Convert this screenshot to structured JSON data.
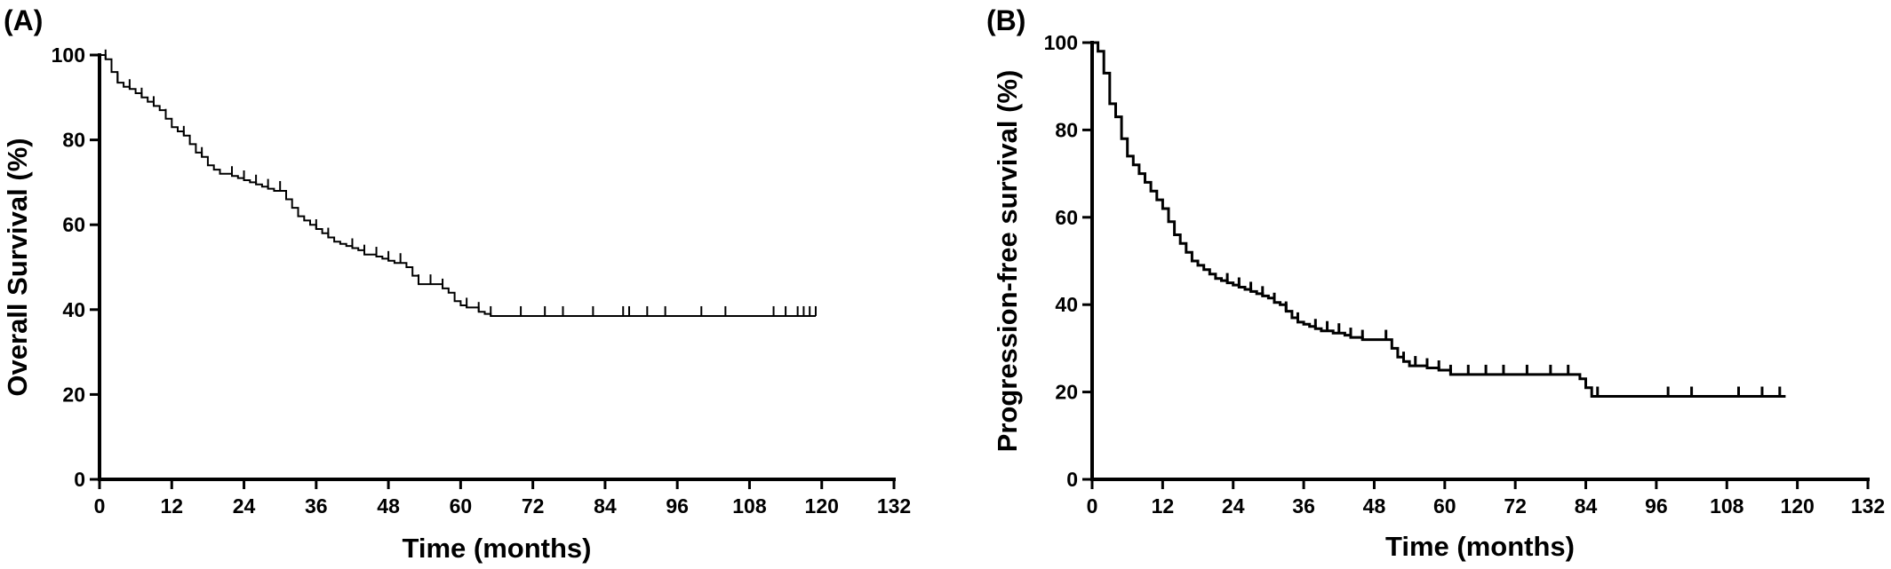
{
  "chart_data": [
    {
      "type": "line",
      "panel_label": "(A)",
      "xlabel": "Time (months)",
      "ylabel": "Overall Survival (%)",
      "xlim": [
        0,
        132
      ],
      "ylim": [
        0,
        100
      ],
      "xticks": [
        0,
        12,
        24,
        36,
        48,
        60,
        72,
        84,
        96,
        108,
        120,
        132
      ],
      "yticks": [
        0,
        20,
        40,
        60,
        80,
        100
      ],
      "series": [
        {
          "step": true,
          "x": [
            0,
            1,
            2,
            3,
            4,
            5,
            6,
            7,
            8,
            9,
            10,
            11,
            12,
            13,
            14,
            15,
            16,
            17,
            18,
            19,
            20,
            21,
            22,
            23,
            24,
            25,
            26,
            27,
            28,
            29,
            30,
            31,
            32,
            33,
            34,
            35,
            36,
            37,
            38,
            39,
            40,
            41,
            42,
            43,
            44,
            45,
            46,
            47,
            48,
            49,
            50,
            51,
            52,
            53,
            54,
            55,
            56,
            57,
            58,
            59,
            60,
            61,
            62,
            63,
            64,
            65,
            70,
            80,
            90,
            100,
            110,
            119
          ],
          "y": [
            100,
            99,
            96,
            93.5,
            92.5,
            92,
            91,
            90,
            89,
            88,
            87,
            85,
            83,
            82,
            81,
            79,
            77,
            76,
            74,
            73,
            72,
            72,
            71.5,
            71,
            70.5,
            70,
            69.5,
            69,
            68.5,
            68,
            68,
            66,
            64,
            62,
            61,
            60,
            59,
            58,
            57,
            56,
            55.5,
            55,
            54.5,
            54,
            53,
            53,
            52.5,
            52,
            51.5,
            51,
            51,
            50,
            48,
            46,
            46,
            46,
            46,
            45,
            44,
            42,
            41,
            40.5,
            40.5,
            39.5,
            39,
            38.5,
            38.5,
            38.5,
            38.5,
            38.5,
            38.5,
            38.5
          ]
        }
      ],
      "censor_x": [
        1,
        3,
        5,
        7,
        9,
        11,
        14,
        17,
        22,
        24,
        26,
        28,
        30,
        36,
        38,
        42,
        44,
        46,
        48,
        50,
        53,
        55,
        57,
        61,
        63,
        65,
        70,
        74,
        77,
        82,
        87,
        88,
        91,
        94,
        100,
        104,
        112,
        114,
        116,
        117,
        118,
        119
      ]
    },
    {
      "type": "line",
      "panel_label": "(B)",
      "xlabel": "Time (months)",
      "ylabel": "Progression-free  survival (%)",
      "xlim": [
        0,
        132
      ],
      "ylim": [
        0,
        100
      ],
      "xticks": [
        0,
        12,
        24,
        36,
        48,
        60,
        72,
        84,
        96,
        108,
        120,
        132
      ],
      "yticks": [
        0,
        20,
        40,
        60,
        80,
        100
      ],
      "series": [
        {
          "step": true,
          "x": [
            0,
            1,
            2,
            3,
            4,
            5,
            6,
            7,
            8,
            9,
            10,
            11,
            12,
            13,
            14,
            15,
            16,
            17,
            18,
            19,
            20,
            21,
            22,
            23,
            24,
            25,
            26,
            27,
            28,
            29,
            30,
            31,
            32,
            33,
            34,
            35,
            36,
            37,
            38,
            39,
            40,
            41,
            42,
            43,
            44,
            45,
            46,
            47,
            48,
            49,
            50,
            51,
            52,
            53,
            54,
            55,
            56,
            57,
            58,
            59,
            60,
            61,
            62,
            70,
            80,
            82,
            83,
            84,
            85,
            90,
            100,
            110,
            118
          ],
          "y": [
            100,
            98,
            93,
            86,
            83,
            78,
            74,
            72,
            70,
            68,
            66,
            64,
            62,
            59,
            56,
            54,
            52,
            50,
            49,
            48,
            47,
            46,
            45.5,
            45,
            44.5,
            44,
            43.5,
            43,
            42.5,
            42,
            41.5,
            40.5,
            40,
            38.5,
            37,
            36,
            35.5,
            35,
            34.5,
            34,
            34,
            33.5,
            33.5,
            33,
            32.5,
            32.5,
            32,
            32,
            32,
            32,
            32,
            30,
            28,
            27,
            26,
            26,
            26,
            25.5,
            25.5,
            25,
            25,
            24,
            24,
            24,
            24,
            24,
            23,
            21,
            19,
            19,
            19,
            19,
            19
          ]
        }
      ],
      "censor_x": [
        23,
        25,
        27,
        29,
        31,
        33,
        35,
        38,
        40,
        42,
        44,
        46,
        50,
        53,
        55,
        57,
        59,
        61,
        64,
        67,
        70,
        74,
        78,
        81,
        86,
        98,
        102,
        110,
        114,
        117
      ]
    }
  ]
}
